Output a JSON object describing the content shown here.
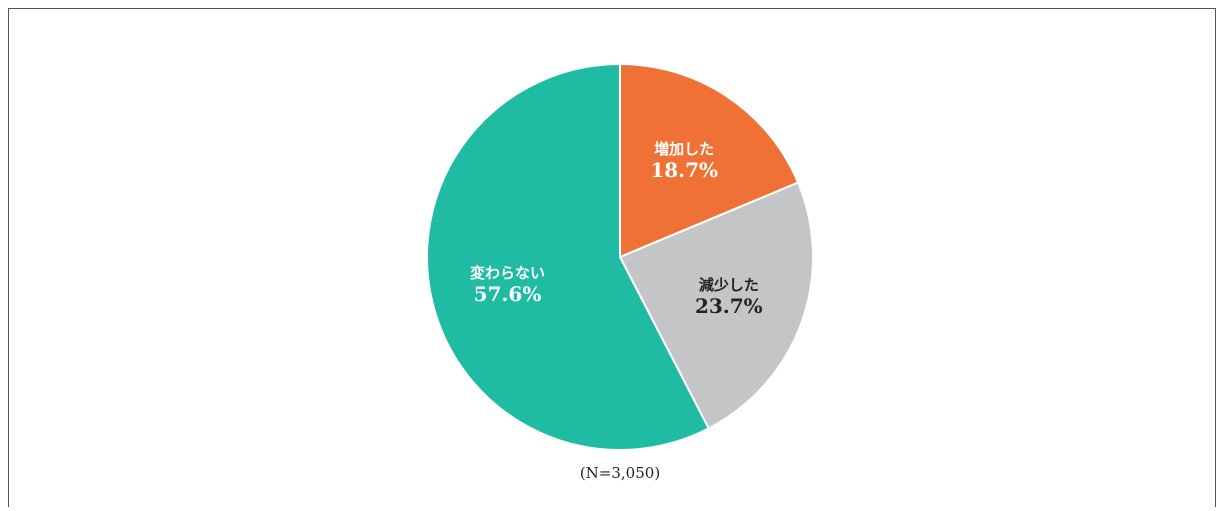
{
  "chart_data": {
    "type": "pie",
    "categories": [
      "増加した",
      "減少した",
      "変わらない"
    ],
    "values": [
      18.7,
      23.7,
      57.6
    ],
    "value_labels": [
      "18.7%",
      "23.7%",
      "57.6%"
    ],
    "colors": [
      "#f07135",
      "#c4c5c7",
      "#20bba3"
    ],
    "label_colors": [
      "#ffffff",
      "#222222",
      "#ffffff"
    ],
    "annotation": "(N=3,050)"
  }
}
